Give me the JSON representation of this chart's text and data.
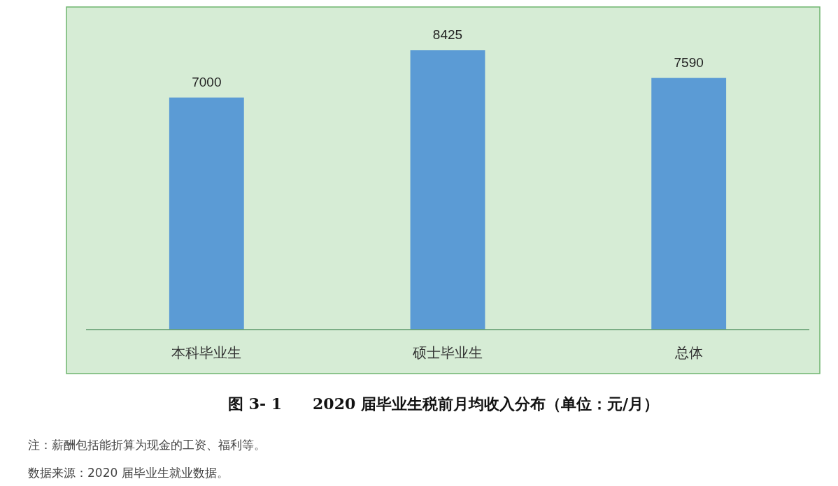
{
  "chart_data": {
    "type": "bar",
    "title": "图 3- 1　　2020 届毕业生税前月均收入分布（单位：元/月）",
    "categories": [
      "本科毕业生",
      "硕士毕业生",
      "总体"
    ],
    "values": [
      7000,
      8425,
      7590
    ],
    "color": "#5b9bd5",
    "data_labels": true,
    "annotations": [
      "注：薪酬包括能折算为现金的工资、福利等。",
      "数据来源：2020 届毕业生就业数据。"
    ]
  }
}
